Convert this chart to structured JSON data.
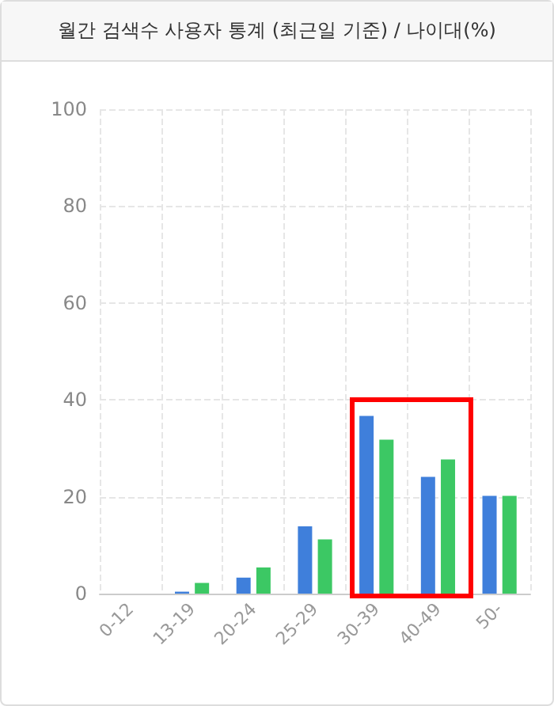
{
  "chart_data": {
    "type": "bar",
    "title": "월간 검색수 사용자 통계 (최근일 기준) / 나이대(%)",
    "categories": [
      "0-12",
      "13-19",
      "20-24",
      "25-29",
      "30-39",
      "40-49",
      "50-"
    ],
    "series": [
      {
        "color": "#3f7fdb",
        "values": [
          0,
          0.4,
          3.3,
          13.9,
          36.7,
          24.1,
          20.2
        ]
      },
      {
        "color": "#3cc864",
        "values": [
          0,
          2.2,
          5.4,
          11.2,
          31.8,
          27.7,
          20.2
        ]
      }
    ],
    "ylim": [
      0,
      100
    ],
    "yticks": [
      0,
      20,
      40,
      60,
      80,
      100
    ],
    "grid": true
  }
}
